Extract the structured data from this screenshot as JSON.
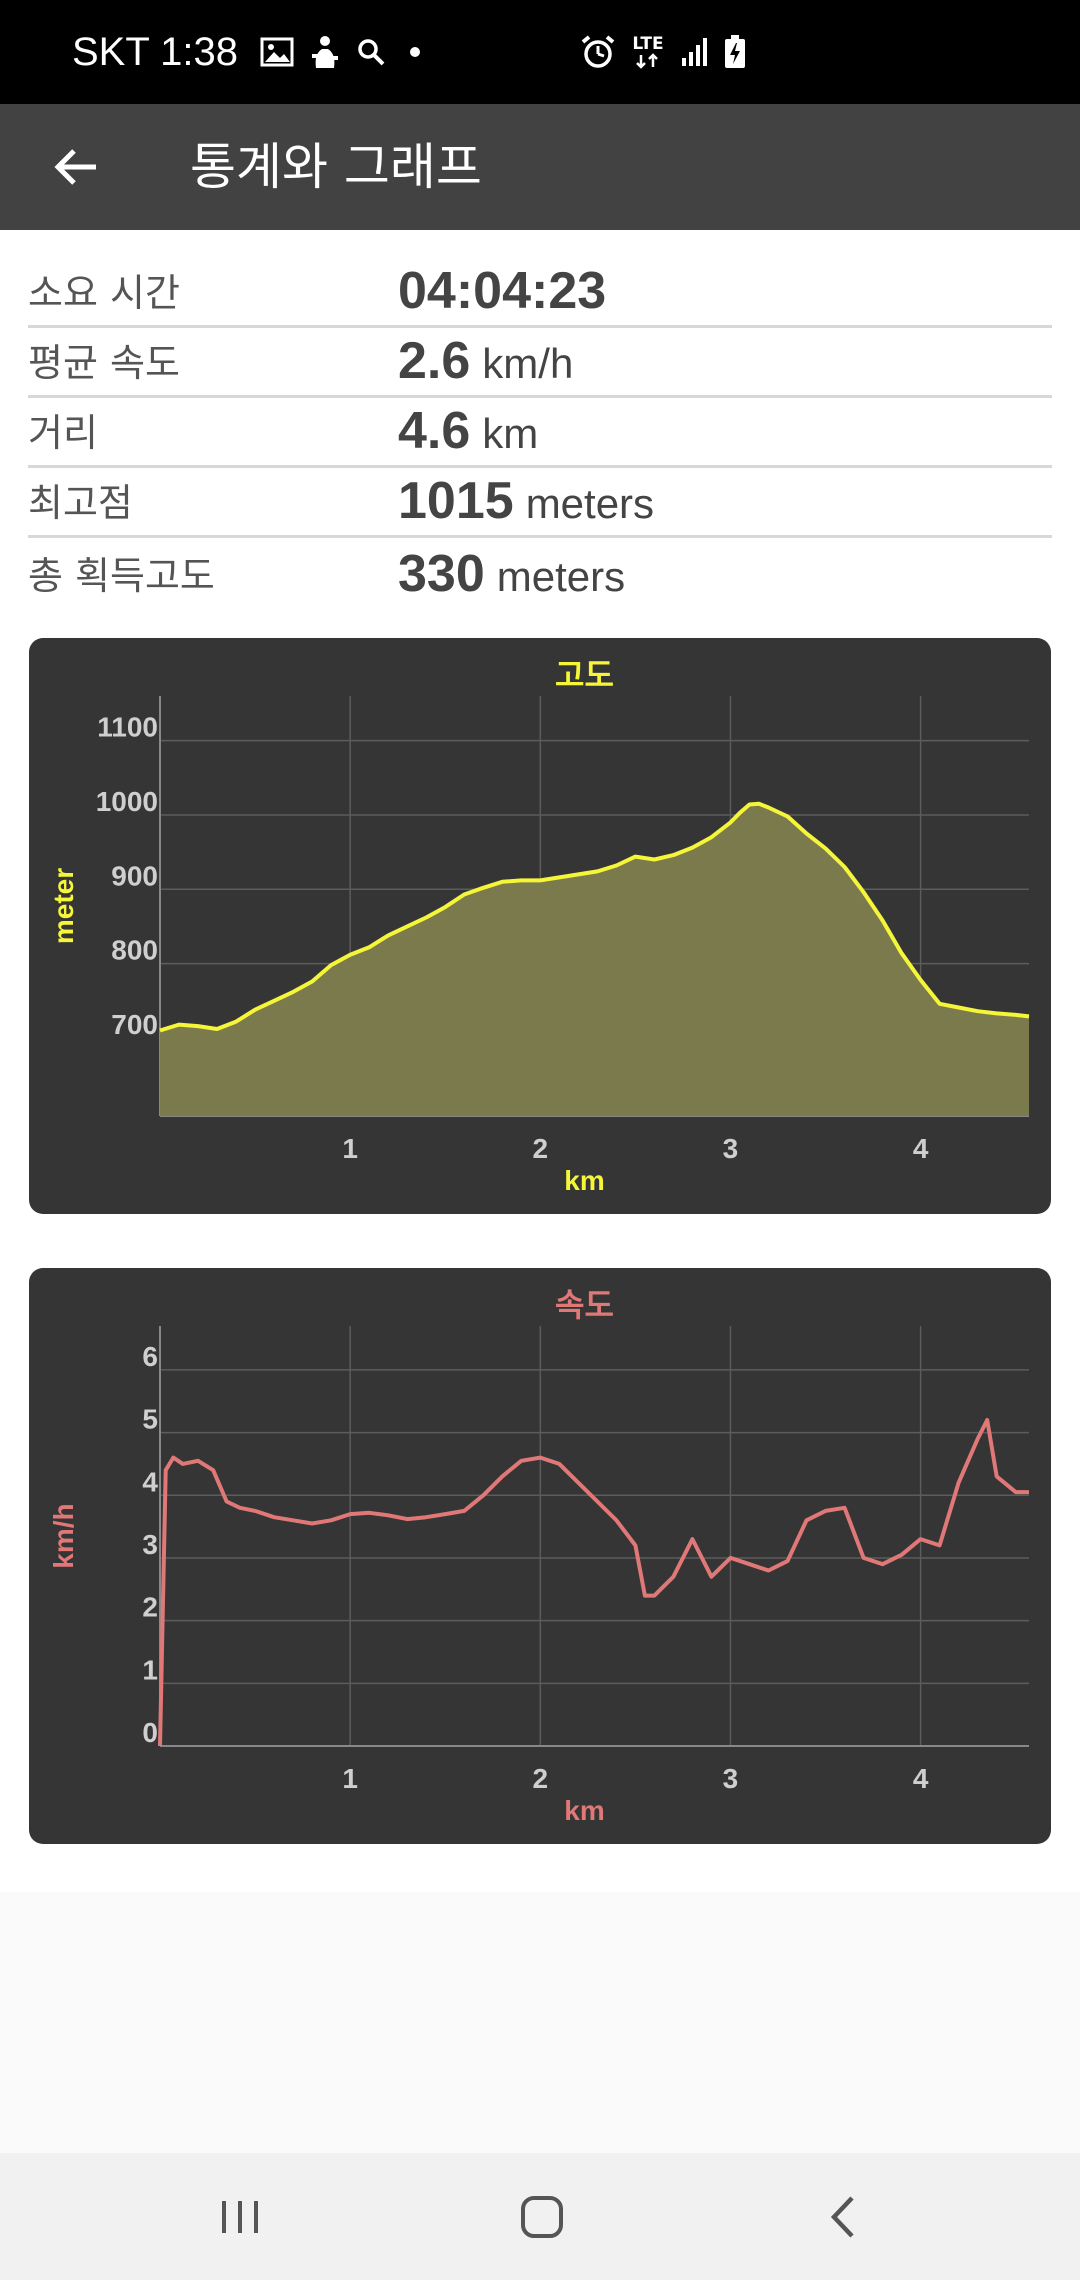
{
  "status_bar": {
    "carrier_time": "SKT 1:38",
    "icons": [
      "image-icon",
      "app-notification-icon",
      "search-icon",
      "dot-icon"
    ],
    "right_icons": [
      "alarm-icon",
      "lte-icon",
      "signal-icon",
      "battery-charging-icon"
    ],
    "lte_label": "LTE"
  },
  "app_bar": {
    "title": "통계와 그래프"
  },
  "stats": [
    {
      "label": "소요 시간",
      "value": "04:04:23",
      "unit": ""
    },
    {
      "label": "평균 속도",
      "value": "2.6",
      "unit": "km/h"
    },
    {
      "label": "거리",
      "value": "4.6",
      "unit": "km"
    },
    {
      "label": "최고점",
      "value": "1015",
      "unit": "meters"
    },
    {
      "label": "총 획득고도",
      "value": "330",
      "unit": "meters"
    }
  ],
  "chart_data": [
    {
      "type": "area",
      "title": "고도",
      "xlabel": "km",
      "ylabel": "meter",
      "color": "#f5f53a",
      "fill": "#7a7a4c",
      "xlim": [
        0,
        4.57
      ],
      "ylim": [
        595,
        1160
      ],
      "xticks": [
        1,
        2,
        3,
        4
      ],
      "yticks": [
        700,
        800,
        900,
        1000,
        1100
      ],
      "grid": true,
      "x": [
        0,
        0.1,
        0.2,
        0.3,
        0.4,
        0.5,
        0.6,
        0.7,
        0.8,
        0.9,
        1.0,
        1.1,
        1.2,
        1.3,
        1.4,
        1.5,
        1.6,
        1.7,
        1.8,
        1.9,
        2.0,
        2.1,
        2.2,
        2.3,
        2.4,
        2.5,
        2.6,
        2.7,
        2.8,
        2.9,
        3.0,
        3.05,
        3.1,
        3.15,
        3.2,
        3.3,
        3.4,
        3.5,
        3.6,
        3.7,
        3.8,
        3.9,
        4.0,
        4.1,
        4.2,
        4.3,
        4.4,
        4.5,
        4.57
      ],
      "values": [
        710,
        718,
        716,
        712,
        722,
        738,
        750,
        762,
        776,
        798,
        812,
        822,
        838,
        850,
        862,
        876,
        893,
        902,
        910,
        912,
        912,
        916,
        920,
        924,
        932,
        944,
        940,
        946,
        956,
        970,
        990,
        1003,
        1014,
        1015,
        1010,
        998,
        975,
        955,
        930,
        896,
        858,
        814,
        778,
        746,
        741,
        736,
        733,
        731,
        729
      ]
    },
    {
      "type": "line",
      "title": "속도",
      "xlabel": "km",
      "ylabel": "km/h",
      "color": "#e07878",
      "xlim": [
        0,
        4.57
      ],
      "ylim": [
        0,
        6.7
      ],
      "xticks": [
        1,
        2,
        3,
        4
      ],
      "yticks": [
        0,
        1,
        2,
        3,
        4,
        5,
        6
      ],
      "grid": true,
      "x": [
        0,
        0.03,
        0.07,
        0.12,
        0.2,
        0.28,
        0.35,
        0.42,
        0.5,
        0.6,
        0.7,
        0.8,
        0.9,
        1.0,
        1.1,
        1.2,
        1.3,
        1.4,
        1.5,
        1.6,
        1.7,
        1.8,
        1.9,
        2.0,
        2.1,
        2.2,
        2.3,
        2.4,
        2.5,
        2.55,
        2.6,
        2.7,
        2.8,
        2.85,
        2.9,
        3.0,
        3.1,
        3.2,
        3.3,
        3.4,
        3.5,
        3.6,
        3.7,
        3.8,
        3.9,
        4.0,
        4.1,
        4.2,
        4.3,
        4.35,
        4.4,
        4.5,
        4.57
      ],
      "values": [
        0,
        4.4,
        4.6,
        4.5,
        4.55,
        4.4,
        3.9,
        3.8,
        3.75,
        3.65,
        3.6,
        3.55,
        3.6,
        3.7,
        3.72,
        3.68,
        3.62,
        3.65,
        3.7,
        3.75,
        4.0,
        4.3,
        4.55,
        4.6,
        4.5,
        4.2,
        3.9,
        3.6,
        3.2,
        2.4,
        2.4,
        2.7,
        3.3,
        3.0,
        2.7,
        3.0,
        2.9,
        2.8,
        2.95,
        3.6,
        3.75,
        3.8,
        3.0,
        2.9,
        3.05,
        3.3,
        3.2,
        4.2,
        4.9,
        5.2,
        4.3,
        4.05,
        4.05
      ]
    }
  ],
  "nav": {
    "recents": "recents-icon",
    "home": "home-icon",
    "back": "back-icon"
  }
}
